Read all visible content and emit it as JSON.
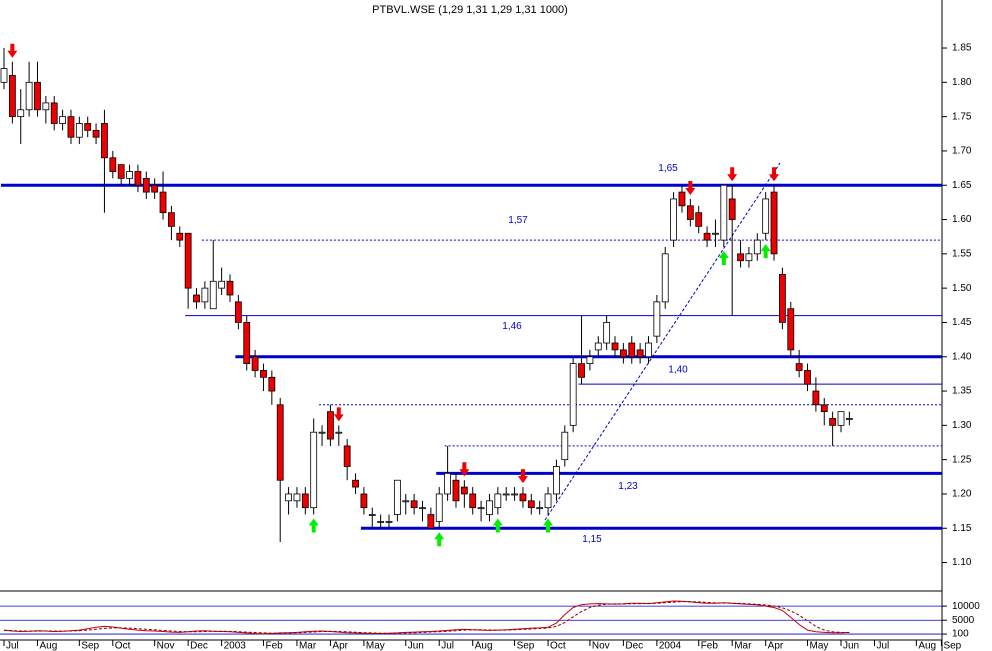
{
  "chart_data": [
    {
      "type": "candlestick",
      "title": "PTBVL.WSE (1,29 1,31 1,29 1,31 1000)",
      "categories": [
        "Jul",
        null,
        null,
        null,
        "Aug",
        null,
        null,
        null,
        null,
        "Sep",
        null,
        null,
        null,
        "Oct",
        null,
        null,
        null,
        null,
        "Nov",
        null,
        null,
        null,
        "Dec",
        null,
        null,
        null,
        "2003",
        null,
        null,
        null,
        null,
        "Feb",
        null,
        null,
        null,
        "Mar",
        null,
        null,
        null,
        "Apr",
        null,
        null,
        null,
        "May",
        null,
        null,
        null,
        null,
        "Jun",
        null,
        null,
        null,
        "Jul",
        null,
        null,
        null,
        "Aug",
        null,
        null,
        null,
        null,
        "Sep",
        null,
        null,
        null,
        "Oct",
        null,
        null,
        null,
        null,
        "Nov",
        null,
        null,
        null,
        "Dec",
        null,
        null,
        null,
        "2004",
        null,
        null,
        null,
        null,
        "Feb",
        null,
        null,
        null,
        "Mar",
        null,
        null,
        null,
        "Apr",
        null,
        null,
        null,
        null,
        "May",
        null,
        null,
        null,
        "Jun",
        null,
        null,
        null,
        "Jul",
        null,
        null,
        null,
        null,
        "Aug",
        null,
        null,
        "Sep"
      ],
      "open": [
        1.8,
        1.81,
        1.75,
        1.76,
        1.8,
        1.76,
        1.77,
        1.74,
        1.75,
        1.72,
        1.74,
        1.73,
        1.74,
        1.69,
        1.68,
        1.66,
        1.67,
        1.66,
        1.65,
        1.64,
        1.61,
        1.58,
        1.58,
        1.49,
        1.48,
        1.47,
        1.5,
        1.51,
        1.48,
        1.45,
        1.4,
        1.38,
        1.37,
        1.33,
        1.19,
        1.19,
        1.2,
        1.18,
        1.29,
        1.32,
        1.29,
        1.27,
        1.22,
        1.2,
        1.17,
        1.16,
        1.16,
        1.17,
        1.19,
        1.19,
        1.18,
        1.17,
        1.16,
        1.2,
        1.22,
        1.21,
        1.2,
        1.18,
        1.17,
        1.18,
        1.2,
        1.2,
        1.2,
        1.19,
        1.18,
        1.18,
        1.2,
        1.25,
        1.3,
        1.39,
        1.39,
        1.41,
        1.42,
        1.42,
        1.41,
        1.42,
        1.41,
        1.4,
        1.43,
        1.48,
        1.57,
        1.64,
        1.62,
        1.61,
        1.58,
        1.58,
        1.57,
        1.63,
        1.55,
        1.54,
        1.55,
        1.58,
        1.64,
        1.52,
        1.47,
        1.39,
        1.38,
        1.35,
        1.33,
        1.31,
        1.3,
        1.31,
        null,
        null,
        null,
        null,
        null,
        null,
        null,
        null,
        null,
        null,
        null
      ],
      "high": [
        1.85,
        1.83,
        1.79,
        1.83,
        1.83,
        1.78,
        1.78,
        1.76,
        1.76,
        1.75,
        1.75,
        1.74,
        1.76,
        1.7,
        1.68,
        1.68,
        1.68,
        1.67,
        1.66,
        1.67,
        1.62,
        1.59,
        1.58,
        1.5,
        1.51,
        1.57,
        1.53,
        1.52,
        1.49,
        1.46,
        1.41,
        1.39,
        1.38,
        1.34,
        1.21,
        1.21,
        1.21,
        1.31,
        1.3,
        1.33,
        1.3,
        1.28,
        1.23,
        1.21,
        1.18,
        1.17,
        1.17,
        1.22,
        1.2,
        1.2,
        1.19,
        1.18,
        1.21,
        1.27,
        1.23,
        1.22,
        1.21,
        1.19,
        1.2,
        1.21,
        1.21,
        1.21,
        1.21,
        1.2,
        1.19,
        1.21,
        1.25,
        1.3,
        1.4,
        1.46,
        1.41,
        1.43,
        1.46,
        1.43,
        1.42,
        1.43,
        1.42,
        1.43,
        1.49,
        1.56,
        1.64,
        1.65,
        1.63,
        1.62,
        1.59,
        1.6,
        1.65,
        1.65,
        1.57,
        1.56,
        1.58,
        1.64,
        1.65,
        1.53,
        1.48,
        1.41,
        1.39,
        1.37,
        1.34,
        1.32,
        1.32,
        1.32,
        null,
        null,
        null,
        null,
        null,
        null,
        null,
        null,
        null,
        null,
        null
      ],
      "low": [
        1.79,
        1.74,
        1.71,
        1.75,
        1.75,
        1.74,
        1.73,
        1.73,
        1.71,
        1.71,
        1.72,
        1.71,
        1.61,
        1.66,
        1.65,
        1.65,
        1.64,
        1.63,
        1.63,
        1.6,
        1.57,
        1.56,
        1.47,
        1.47,
        1.47,
        1.47,
        1.49,
        1.48,
        1.44,
        1.38,
        1.37,
        1.35,
        1.33,
        1.13,
        1.17,
        1.18,
        1.17,
        1.17,
        1.27,
        1.27,
        1.27,
        1.22,
        1.2,
        1.17,
        1.15,
        1.15,
        1.15,
        1.16,
        1.17,
        1.17,
        1.16,
        1.15,
        1.15,
        1.19,
        1.18,
        1.18,
        1.17,
        1.16,
        1.16,
        1.17,
        1.19,
        1.19,
        1.18,
        1.17,
        1.17,
        1.17,
        1.19,
        1.24,
        1.29,
        1.36,
        1.38,
        1.4,
        1.41,
        1.4,
        1.39,
        1.39,
        1.39,
        1.39,
        1.42,
        1.47,
        1.56,
        1.61,
        1.59,
        1.58,
        1.56,
        1.56,
        1.56,
        1.46,
        1.53,
        1.53,
        1.54,
        1.57,
        1.54,
        1.44,
        1.4,
        1.37,
        1.35,
        1.32,
        1.3,
        1.27,
        1.29,
        1.3,
        null,
        null,
        null,
        null,
        null,
        null,
        null,
        null,
        null,
        null,
        null
      ],
      "close": [
        1.82,
        1.75,
        1.76,
        1.8,
        1.76,
        1.77,
        1.74,
        1.75,
        1.72,
        1.74,
        1.73,
        1.72,
        1.69,
        1.67,
        1.66,
        1.67,
        1.65,
        1.64,
        1.64,
        1.61,
        1.59,
        1.57,
        1.5,
        1.48,
        1.5,
        1.51,
        1.51,
        1.49,
        1.45,
        1.39,
        1.38,
        1.37,
        1.35,
        1.22,
        1.2,
        1.2,
        1.18,
        1.29,
        1.29,
        1.28,
        1.29,
        1.24,
        1.21,
        1.18,
        1.17,
        1.16,
        1.16,
        1.22,
        1.19,
        1.18,
        1.18,
        1.15,
        1.2,
        1.23,
        1.19,
        1.2,
        1.18,
        1.18,
        1.19,
        1.2,
        1.2,
        1.2,
        1.19,
        1.18,
        1.18,
        1.2,
        1.24,
        1.29,
        1.39,
        1.37,
        1.4,
        1.42,
        1.45,
        1.41,
        1.4,
        1.4,
        1.4,
        1.42,
        1.48,
        1.55,
        1.63,
        1.62,
        1.6,
        1.59,
        1.57,
        1.58,
        1.65,
        1.6,
        1.54,
        1.55,
        1.57,
        1.63,
        1.55,
        1.45,
        1.41,
        1.38,
        1.36,
        1.33,
        1.32,
        1.3,
        1.32,
        1.31,
        null,
        null,
        null,
        null,
        null,
        null,
        null,
        null,
        null,
        null,
        null
      ],
      "up_color": "#ffffff",
      "down_color": "#ee0000",
      "level_color": "#0000cc",
      "buy_color": "#00ee00",
      "sell_color": "#ee0000",
      "buy_signals": [
        37,
        52,
        59,
        65,
        86,
        91
      ],
      "sell_signals": [
        1,
        40,
        55,
        62,
        82,
        87,
        92
      ],
      "levels": [
        {
          "value": 1.65,
          "label": "1,65",
          "style": "thick",
          "x": 0
        },
        {
          "value": 1.57,
          "label": "1,57",
          "style": "dashed",
          "x": 24
        },
        {
          "value": 1.46,
          "label": "1,46",
          "style": "thin",
          "x": 22
        },
        {
          "value": 1.4,
          "label": "1,40",
          "style": "thick",
          "x": 28
        },
        {
          "value": 1.36,
          "style": "thin",
          "x": 69
        },
        {
          "value": 1.33,
          "style": "dashed",
          "x": 38
        },
        {
          "value": 1.27,
          "style": "dashed",
          "x": 53
        },
        {
          "value": 1.23,
          "label": "1,23",
          "style": "thick",
          "x": 52
        },
        {
          "value": 1.15,
          "label": "1,15",
          "style": "thick",
          "x": 43
        }
      ],
      "ylim": [
        1.06,
        1.92
      ],
      "yticks": [
        {
          "value": 1.1,
          "label": "1.10"
        },
        1.15,
        {
          "value": 1.2,
          "label": "1.20"
        },
        1.25,
        {
          "value": 1.3,
          "label": "1.30"
        },
        1.35,
        {
          "value": 1.4,
          "label": "1.40"
        },
        1.45,
        {
          "value": 1.5,
          "label": "1.50"
        },
        1.55,
        {
          "value": 1.6,
          "label": "1.60"
        },
        1.65,
        {
          "value": 1.7,
          "label": "1.70"
        },
        1.75,
        {
          "value": 1.8,
          "label": "1.80"
        },
        1.85
      ]
    },
    {
      "type": "line",
      "series": [
        {
          "color": "#cc0000",
          "dash": false,
          "values": [
            1500,
            1200,
            1000,
            1100,
            1300,
            1200,
            1000,
            1100,
            1300,
            1500,
            2000,
            2500,
            2800,
            2600,
            2200,
            1800,
            1500,
            1300,
            1200,
            1000,
            800,
            700,
            900,
            1200,
            1300,
            1100,
            1000,
            900,
            700,
            500,
            300,
            200,
            300,
            500,
            600,
            700,
            900,
            1100,
            1200,
            1000,
            800,
            600,
            500,
            400,
            300,
            300,
            400,
            500,
            700,
            800,
            900,
            1000,
            1200,
            1400,
            1600,
            1800,
            1600,
            1500,
            1400,
            1500,
            1600,
            1800,
            2000,
            2200,
            2300,
            2500,
            4000,
            7000,
            9500,
            10500,
            10800,
            10900,
            10800,
            10700,
            10800,
            11000,
            11000,
            10900,
            11200,
            11500,
            11800,
            11700,
            11500,
            11200,
            11000,
            11000,
            11200,
            11000,
            10800,
            10600,
            10500,
            10000,
            9500,
            8500,
            6000,
            3500,
            1500,
            900,
            700,
            600,
            600,
            700,
            null,
            null,
            null,
            null,
            null,
            null,
            null,
            null,
            null,
            null,
            null
          ]
        },
        {
          "color": "#880000",
          "dash": true,
          "values": [
            1400,
            1300,
            1200,
            1150,
            1150,
            1200,
            1150,
            1150,
            1200,
            1300,
            1500,
            1800,
            2100,
            2300,
            2300,
            2200,
            2000,
            1800,
            1600,
            1400,
            1200,
            1000,
            900,
            900,
            1000,
            1100,
            1100,
            1050,
            950,
            800,
            650,
            500,
            400,
            400,
            450,
            550,
            700,
            850,
            1000,
            1050,
            1000,
            900,
            750,
            600,
            500,
            400,
            350,
            400,
            500,
            600,
            700,
            850,
            950,
            1100,
            1300,
            1500,
            1600,
            1600,
            1550,
            1500,
            1500,
            1600,
            1750,
            1900,
            2100,
            2250,
            2800,
            4200,
            6200,
            8100,
            9500,
            10300,
            10700,
            10800,
            10800,
            10850,
            10900,
            10950,
            11000,
            11200,
            11400,
            11600,
            11600,
            11500,
            11300,
            11150,
            11100,
            11050,
            10950,
            10800,
            10650,
            10400,
            10000,
            9400,
            8300,
            6800,
            4800,
            2800,
            1500,
            900,
            700,
            650,
            null,
            null,
            null,
            null,
            null,
            null,
            null,
            null,
            null,
            null,
            null
          ]
        }
      ],
      "grid_color": "#0000cc",
      "ylim": [
        -2000,
        15000
      ],
      "yticks": [
        10000,
        5000,
        100
      ]
    }
  ]
}
